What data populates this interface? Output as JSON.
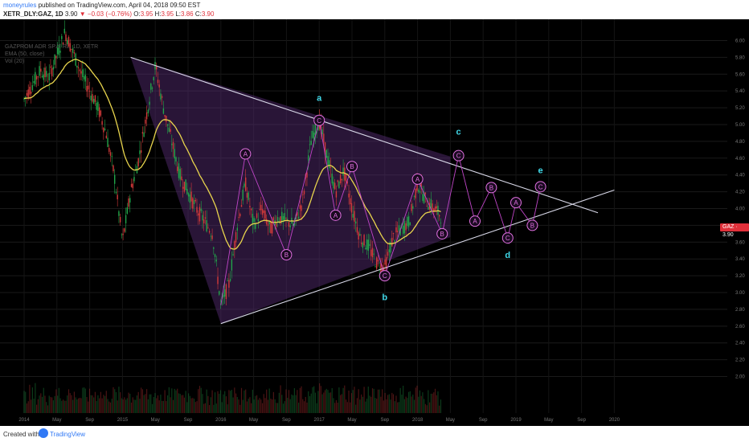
{
  "header": {
    "user": "moneyrules",
    "published": " published on TradingView.com, April 04, 2018 09:50 EST",
    "symbol": "XETR_DLY:GAZ, 1D",
    "last": "3.90",
    "change": "−0.03 (−0.76%)",
    "o_label": "O:",
    "o": "3.95",
    "h_label": "H:",
    "h": "3.95",
    "l_label": "L:",
    "l": "3.86",
    "c_label": "C:",
    "c": "3.90"
  },
  "legend": {
    "line1": "GAZPROM ADR SP./2 RL, 1D, XETR",
    "line2": "EMA (50, close)",
    "line3": "Vol (20)"
  },
  "price_badge": "GAZ · 3.90",
  "footer": {
    "created": "Created with",
    "brand": "TradingView"
  },
  "colors": {
    "up": "#22a54a",
    "down": "#d33a3a",
    "ema": "#e8d44d",
    "triangle": "#d8d8e8",
    "wave": "#c046c8",
    "wave_label": "#e070e0",
    "abcde": "#40d8e8",
    "fill": "#5a2f7a"
  },
  "chart_data": {
    "type": "candlestick",
    "title": "",
    "xlabel": "",
    "ylabel": "",
    "x_ticks": [
      "2014",
      "May",
      "Sep",
      "2015",
      "May",
      "Sep",
      "2016",
      "May",
      "Sep",
      "2017",
      "May",
      "Sep",
      "2018",
      "May",
      "Sep",
      "2019",
      "May",
      "Sep",
      "2020"
    ],
    "y_ticks": [
      "6.00",
      "5.80",
      "5.60",
      "5.40",
      "5.20",
      "5.00",
      "4.80",
      "4.60",
      "4.40",
      "4.20",
      "4.00",
      "3.80",
      "3.60",
      "3.40",
      "3.20",
      "3.00",
      "2.80",
      "2.60",
      "2.40",
      "2.20",
      "2.00"
    ],
    "ylim": [
      1.9,
      6.1
    ],
    "price_path": [
      [
        "2014-01",
        5.3
      ],
      [
        "2014-03",
        5.65
      ],
      [
        "2014-04",
        5.55
      ],
      [
        "2014-06",
        6.1
      ],
      [
        "2014-07",
        5.85
      ],
      [
        "2014-08",
        5.6
      ],
      [
        "2014-10",
        5.2
      ],
      [
        "2014-11",
        4.9
      ],
      [
        "2014-12",
        4.4
      ],
      [
        "2015-01",
        3.6
      ],
      [
        "2015-02",
        4.2
      ],
      [
        "2015-03",
        4.6
      ],
      [
        "2015-05",
        5.7
      ],
      [
        "2015-06",
        5.2
      ],
      [
        "2015-08",
        4.4
      ],
      [
        "2015-10",
        4.0
      ],
      [
        "2015-12",
        3.7
      ],
      [
        "2016-01",
        2.85
      ],
      [
        "2016-02",
        3.1
      ],
      [
        "2016-03",
        3.8
      ],
      [
        "2016-04",
        4.3
      ],
      [
        "2016-05",
        3.8
      ],
      [
        "2016-06",
        4.0
      ],
      [
        "2016-07",
        3.75
      ],
      [
        "2016-08",
        3.9
      ],
      [
        "2016-10",
        3.8
      ],
      [
        "2016-11",
        4.1
      ],
      [
        "2016-12",
        4.8
      ],
      [
        "2017-01",
        5.05
      ],
      [
        "2017-02",
        4.6
      ],
      [
        "2017-03",
        4.2
      ],
      [
        "2017-04",
        4.45
      ],
      [
        "2017-05",
        4.0
      ],
      [
        "2017-06",
        3.65
      ],
      [
        "2017-07",
        3.55
      ],
      [
        "2017-08",
        3.35
      ],
      [
        "2017-09",
        3.3
      ],
      [
        "2017-10",
        3.65
      ],
      [
        "2017-12",
        3.85
      ],
      [
        "2018-01",
        4.3
      ],
      [
        "2018-02",
        4.1
      ],
      [
        "2018-03",
        4.0
      ],
      [
        "2018-04",
        3.9
      ]
    ],
    "triangle": {
      "upper": [
        [
          "2015-02",
          5.8
        ],
        [
          "2019-11",
          3.95
        ]
      ],
      "lower": [
        [
          "2016-01",
          2.63
        ],
        [
          "2020-01",
          4.22
        ]
      ]
    },
    "wave_labels": [
      {
        "label": "A",
        "x": "2016-04",
        "y": 4.65
      },
      {
        "label": "B",
        "x": "2016-09",
        "y": 3.45
      },
      {
        "label": "C",
        "x": "2017-01",
        "y": 5.05
      },
      {
        "label": "A",
        "x": "2017-03",
        "y": 3.92
      },
      {
        "label": "B",
        "x": "2017-05",
        "y": 4.5
      },
      {
        "label": "C",
        "x": "2017-09",
        "y": 3.2
      },
      {
        "label": "A",
        "x": "2018-01",
        "y": 4.35
      },
      {
        "label": "B",
        "x": "2018-04",
        "y": 3.7
      },
      {
        "label": "C",
        "x": "2018-06",
        "y": 4.63
      },
      {
        "label": "A",
        "x": "2018-08",
        "y": 3.85
      },
      {
        "label": "B",
        "x": "2018-10",
        "y": 4.25
      },
      {
        "label": "C",
        "x": "2018-12",
        "y": 3.65
      },
      {
        "label": "A",
        "x": "2019-01",
        "y": 4.07
      },
      {
        "label": "B",
        "x": "2019-03",
        "y": 3.8
      },
      {
        "label": "C",
        "x": "2019-04",
        "y": 4.26
      }
    ],
    "degree_labels": [
      {
        "label": "a",
        "x": "2017-01",
        "y": 5.32
      },
      {
        "label": "b",
        "x": "2017-09",
        "y": 2.95
      },
      {
        "label": "c",
        "x": "2018-06",
        "y": 4.92
      },
      {
        "label": "d",
        "x": "2018-12",
        "y": 3.45
      },
      {
        "label": "e",
        "x": "2019-04",
        "y": 4.46
      }
    ]
  }
}
